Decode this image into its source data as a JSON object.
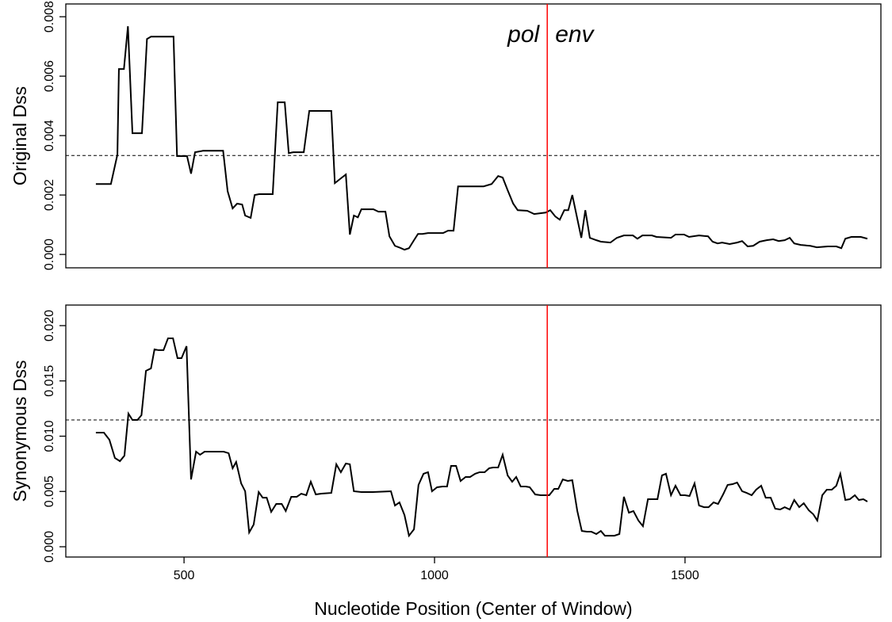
{
  "chart_data": [
    {
      "type": "line",
      "y_label": "Original Dss",
      "color": "#000000",
      "annotations": [
        "pol",
        "env"
      ],
      "vline": 1225,
      "vline_color": "#ff0000",
      "threshold": 0.00333,
      "xlim": [
        264,
        1891
      ],
      "ylim": [
        -0.00045,
        0.00843
      ],
      "yticks": [
        {
          "value": 0,
          "label": "0.000"
        },
        {
          "value": 0.002,
          "label": "0.002"
        },
        {
          "value": 0.004,
          "label": "0.004"
        },
        {
          "value": 0.006,
          "label": "0.006"
        },
        {
          "value": 0.008,
          "label": "0.008"
        }
      ],
      "x": [
        324,
        354,
        367,
        370,
        380,
        388,
        397,
        416,
        426,
        434,
        479,
        486,
        506,
        514,
        522,
        538,
        578,
        587,
        597,
        606,
        616,
        622,
        633,
        641,
        650,
        677,
        687,
        701,
        709,
        718,
        739,
        750,
        794,
        801,
        813,
        823,
        831,
        839,
        847,
        854,
        878,
        888,
        902,
        910,
        921,
        929,
        940,
        949,
        959,
        967,
        976,
        987,
        1017,
        1027,
        1038,
        1047,
        1098,
        1114,
        1127,
        1136,
        1146,
        1157,
        1166,
        1185,
        1199,
        1222,
        1231,
        1241,
        1250,
        1259,
        1267,
        1275,
        1293,
        1301,
        1310,
        1323,
        1332,
        1351,
        1364,
        1378,
        1396,
        1405,
        1415,
        1434,
        1443,
        1472,
        1481,
        1498,
        1508,
        1528,
        1546,
        1555,
        1565,
        1574,
        1589,
        1604,
        1614,
        1625,
        1636,
        1649,
        1663,
        1676,
        1687,
        1699,
        1709,
        1718,
        1731,
        1750,
        1763,
        1785,
        1802,
        1812,
        1820,
        1832,
        1851,
        1864
      ],
      "values": [
        0.00237,
        0.00237,
        0.00336,
        0.00624,
        0.00624,
        0.00768,
        0.00408,
        0.00408,
        0.00725,
        0.00733,
        0.00733,
        0.00331,
        0.00331,
        0.00272,
        0.00344,
        0.00349,
        0.00349,
        0.00213,
        0.00155,
        0.00171,
        0.00168,
        0.00131,
        0.00123,
        0.002,
        0.00203,
        0.00203,
        0.00512,
        0.00512,
        0.00341,
        0.00344,
        0.00344,
        0.00483,
        0.00483,
        0.0024,
        0.00256,
        0.00269,
        0.00067,
        0.00131,
        0.00125,
        0.00152,
        0.00152,
        0.00144,
        0.00144,
        0.00061,
        0.00029,
        0.00024,
        0.00016,
        0.00021,
        0.00048,
        0.00069,
        0.00069,
        0.00072,
        0.00072,
        0.0008,
        0.0008,
        0.00229,
        0.00229,
        0.00237,
        0.00264,
        0.00259,
        0.00216,
        0.00171,
        0.00149,
        0.00147,
        0.00136,
        0.00141,
        0.00149,
        0.00128,
        0.00117,
        0.00149,
        0.00149,
        0.002,
        0.00056,
        0.00149,
        0.00056,
        0.00048,
        0.00043,
        0.0004,
        0.00056,
        0.00064,
        0.00064,
        0.00053,
        0.00064,
        0.00064,
        0.00059,
        0.00056,
        0.00067,
        0.00067,
        0.00059,
        0.00064,
        0.00061,
        0.00043,
        0.00037,
        0.0004,
        0.00035,
        0.0004,
        0.00045,
        0.00027,
        0.00029,
        0.00043,
        0.00048,
        0.00051,
        0.00045,
        0.00048,
        0.00056,
        0.00037,
        0.00032,
        0.00029,
        0.00024,
        0.00027,
        0.00027,
        0.00021,
        0.00053,
        0.00059,
        0.00059,
        0.00053
      ]
    },
    {
      "type": "line",
      "y_label": "Synonymous Dss",
      "x_label": "Nucleotide Position (Center of Window)",
      "color": "#000000",
      "vline": 1225,
      "vline_color": "#ff0000",
      "threshold": 0.01147,
      "xlim": [
        264,
        1891
      ],
      "xticks": [
        500,
        1000,
        1500
      ],
      "ylim": [
        -0.00093,
        0.02186
      ],
      "yticks": [
        {
          "value": 0,
          "label": "0.000"
        },
        {
          "value": 0.005,
          "label": "0.005"
        },
        {
          "value": 0.01,
          "label": "0.010"
        },
        {
          "value": 0.015,
          "label": "0.015"
        },
        {
          "value": 0.02,
          "label": "0.020"
        }
      ],
      "x": [
        324,
        340,
        351,
        362,
        372,
        381,
        389,
        397,
        407,
        415,
        424,
        434,
        441,
        449,
        459,
        468,
        478,
        487,
        495,
        505,
        514,
        524,
        532,
        541,
        579,
        589,
        597,
        604,
        614,
        622,
        630,
        639,
        649,
        657,
        665,
        674,
        684,
        695,
        703,
        714,
        725,
        734,
        744,
        753,
        763,
        774,
        794,
        804,
        813,
        823,
        831,
        839,
        854,
        877,
        913,
        921,
        930,
        940,
        949,
        959,
        968,
        978,
        987,
        995,
        1005,
        1016,
        1025,
        1033,
        1043,
        1052,
        1062,
        1071,
        1081,
        1090,
        1100,
        1109,
        1117,
        1127,
        1136,
        1146,
        1155,
        1163,
        1172,
        1182,
        1190,
        1201,
        1212,
        1229,
        1239,
        1247,
        1256,
        1266,
        1275,
        1285,
        1294,
        1304,
        1313,
        1323,
        1332,
        1340,
        1359,
        1369,
        1378,
        1388,
        1397,
        1407,
        1416,
        1426,
        1435,
        1445,
        1454,
        1462,
        1472,
        1481,
        1491,
        1500,
        1509,
        1519,
        1528,
        1538,
        1547,
        1557,
        1566,
        1576,
        1585,
        1595,
        1604,
        1614,
        1623,
        1633,
        1642,
        1652,
        1661,
        1671,
        1680,
        1690,
        1699,
        1709,
        1718,
        1728,
        1737,
        1747,
        1756,
        1764,
        1774,
        1783,
        1793,
        1802,
        1810,
        1820,
        1829,
        1839,
        1847,
        1856,
        1864
      ],
      "values": [
        0.01032,
        0.01032,
        0.00968,
        0.00803,
        0.00774,
        0.00824,
        0.01204,
        0.01147,
        0.01147,
        0.0119,
        0.01591,
        0.01613,
        0.01785,
        0.01778,
        0.01778,
        0.01885,
        0.01885,
        0.01706,
        0.01706,
        0.01814,
        0.00609,
        0.0086,
        0.00832,
        0.0086,
        0.0086,
        0.00846,
        0.0071,
        0.00767,
        0.00573,
        0.00502,
        0.00129,
        0.00201,
        0.00495,
        0.00444,
        0.00444,
        0.00315,
        0.00387,
        0.00387,
        0.00323,
        0.00452,
        0.00452,
        0.0048,
        0.00466,
        0.00588,
        0.00473,
        0.0048,
        0.00487,
        0.00746,
        0.00674,
        0.00753,
        0.00746,
        0.00502,
        0.00495,
        0.00495,
        0.00502,
        0.00373,
        0.00401,
        0.00287,
        0.001,
        0.00158,
        0.00559,
        0.0066,
        0.00674,
        0.00502,
        0.00538,
        0.00545,
        0.00545,
        0.00731,
        0.00731,
        0.00595,
        0.00631,
        0.00631,
        0.0066,
        0.00674,
        0.00674,
        0.0071,
        0.00717,
        0.00717,
        0.00832,
        0.00645,
        0.00588,
        0.00631,
        0.00545,
        0.00545,
        0.00538,
        0.00473,
        0.00466,
        0.00466,
        0.00523,
        0.00523,
        0.00609,
        0.00595,
        0.00602,
        0.00323,
        0.00143,
        0.00136,
        0.00136,
        0.00115,
        0.00143,
        0.001,
        0.001,
        0.00115,
        0.00452,
        0.00308,
        0.00323,
        0.00237,
        0.00186,
        0.0043,
        0.0043,
        0.0043,
        0.00645,
        0.0066,
        0.00466,
        0.00552,
        0.00466,
        0.00466,
        0.00459,
        0.00573,
        0.00373,
        0.00358,
        0.00358,
        0.00401,
        0.00387,
        0.00473,
        0.00559,
        0.00566,
        0.00581,
        0.00502,
        0.00487,
        0.00466,
        0.00516,
        0.00552,
        0.00444,
        0.00444,
        0.00344,
        0.00337,
        0.00358,
        0.00337,
        0.00423,
        0.00358,
        0.00394,
        0.0033,
        0.00294,
        0.00237,
        0.00466,
        0.00516,
        0.00516,
        0.00552,
        0.0066,
        0.00423,
        0.0043,
        0.00466,
        0.00423,
        0.0043,
        0.00409
      ]
    }
  ]
}
